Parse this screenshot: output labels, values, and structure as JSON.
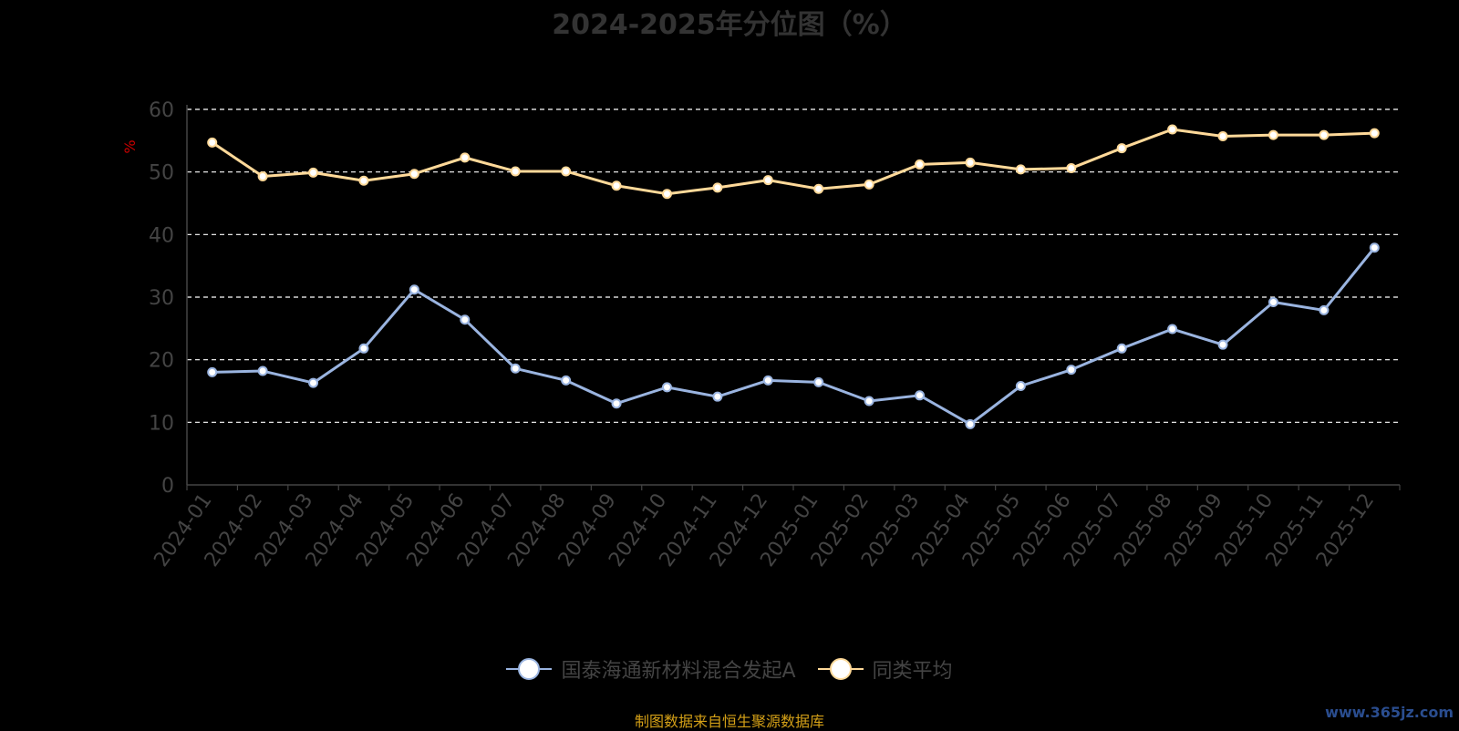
{
  "title": "2024-2025年分位图（%）",
  "source": "制图数据来自恒生聚源数据库",
  "watermark": "www.365jz.com",
  "chart_data": {
    "type": "line",
    "title": "2024-2025年分位图（%）",
    "ylabel": "%",
    "xlabel": "",
    "ylim": [
      0,
      60
    ],
    "yticks": [
      0,
      10,
      20,
      30,
      40,
      50,
      60
    ],
    "grid": true,
    "legend_position": "bottom",
    "categories": [
      "2024-01",
      "2024-02",
      "2024-03",
      "2024-04",
      "2024-05",
      "2024-06",
      "2024-07",
      "2024-08",
      "2024-09",
      "2024-10",
      "2024-11",
      "2024-12",
      "2025-01",
      "2025-02",
      "2025-03",
      "2025-04",
      "2025-05",
      "2025-06",
      "2025-07",
      "2025-08",
      "2025-09",
      "2025-10",
      "2025-11",
      "2025-12"
    ],
    "series": [
      {
        "name": "国泰海通新材料混合发起A",
        "color": "#9ab4e0",
        "values": [
          18.0,
          18.2,
          16.3,
          21.8,
          31.2,
          26.4,
          18.6,
          16.7,
          13.0,
          15.6,
          14.1,
          16.7,
          16.4,
          13.4,
          14.3,
          9.7,
          15.8,
          18.4,
          21.8,
          24.9,
          22.4,
          29.2,
          27.9,
          37.9
        ]
      },
      {
        "name": "同类平均",
        "color": "#ffd999",
        "values": [
          54.7,
          49.3,
          49.9,
          48.6,
          49.7,
          52.3,
          50.1,
          50.1,
          47.8,
          46.5,
          47.5,
          48.7,
          47.3,
          48.0,
          51.2,
          51.5,
          50.4,
          50.6,
          53.8,
          56.8,
          55.7,
          55.9,
          55.9,
          56.2
        ]
      }
    ]
  }
}
